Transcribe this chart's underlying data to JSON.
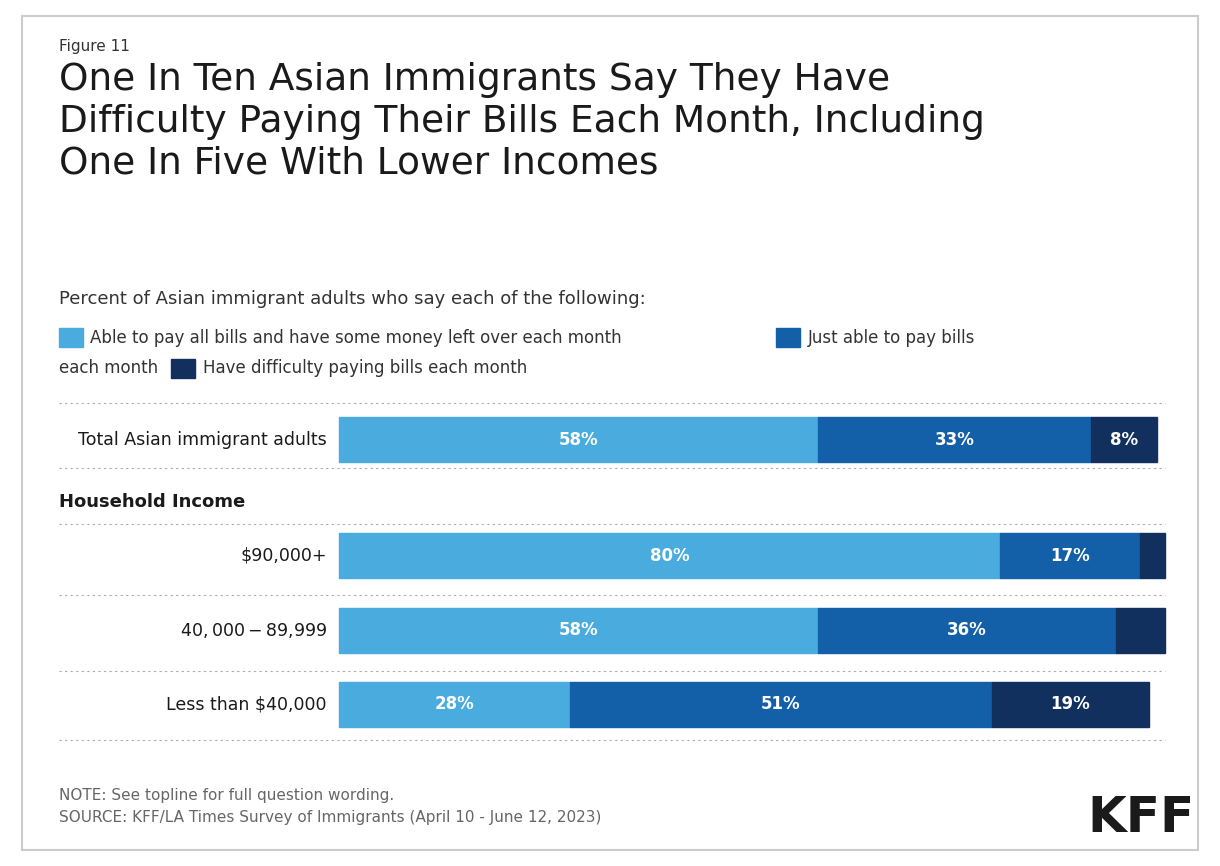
{
  "figure_label": "Figure 11",
  "title": "One In Ten Asian Immigrants Say They Have\nDifficulty Paying Their Bills Each Month, Including\nOne In Five With Lower Incomes",
  "subtitle": "Percent of Asian immigrant adults who say each of the following:",
  "colors": [
    "#4aabdf",
    "#1460a8",
    "#12305e"
  ],
  "data": [
    {
      "label": "Total Asian immigrant adults",
      "values": [
        58,
        33,
        8
      ],
      "is_section": false
    },
    {
      "label": "Household Income",
      "values": null,
      "is_section": true
    },
    {
      "label": "$90,000+",
      "values": [
        80,
        17,
        3
      ],
      "is_section": false
    },
    {
      "label": "$40,000-$89,999",
      "values": [
        58,
        36,
        6
      ],
      "is_section": false
    },
    {
      "label": "Less than $40,000",
      "values": [
        28,
        51,
        19
      ],
      "is_section": false
    }
  ],
  "bar_text_labels": [
    [
      "58%",
      "33%",
      "8%"
    ],
    [
      "80%",
      "17%",
      ""
    ],
    [
      "58%",
      "36%",
      ""
    ],
    [
      "28%",
      "51%",
      "19%"
    ]
  ],
  "note_line1": "NOTE: See topline for full question wording.",
  "note_line2": "SOURCE: KFF/LA Times Survey of Immigrants (April 10 - June 12, 2023)",
  "background_color": "#ffffff",
  "border_color": "#cccccc",
  "text_color": "#333333",
  "title_color": "#1a1a1a",
  "label_fontsize": 13,
  "bar_label_fontsize": 12,
  "note_fontsize": 11
}
